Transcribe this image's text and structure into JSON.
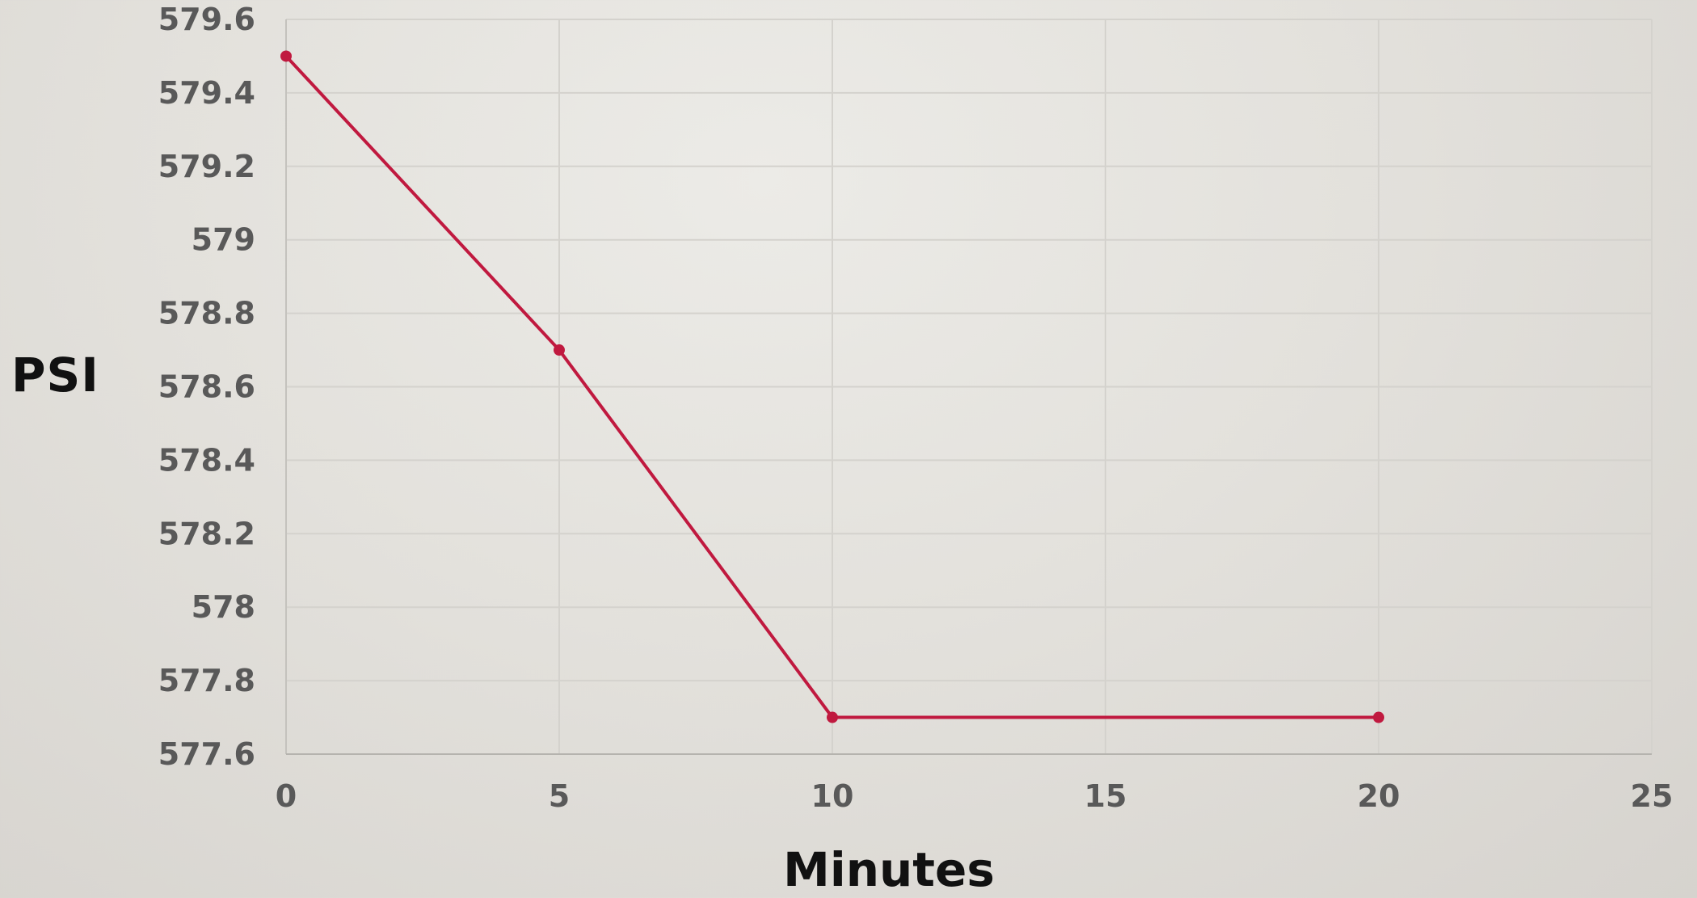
{
  "chart_data": {
    "type": "line",
    "title": "",
    "xlabel": "Minutes",
    "ylabel": "PSI",
    "xlim": [
      0,
      25
    ],
    "ylim": [
      577.6,
      579.6
    ],
    "x_ticks": [
      "0",
      "5",
      "10",
      "15",
      "20",
      "25"
    ],
    "y_ticks": [
      "577.6",
      "577.8",
      "578",
      "578.2",
      "578.4",
      "578.6",
      "578.8",
      "579",
      "579.2",
      "579.4",
      "579.6"
    ],
    "grid": true,
    "legend": "none",
    "series": [
      {
        "color": "#c0193f",
        "points": [
          {
            "x": 0,
            "y": 579.5
          },
          {
            "x": 5,
            "y": 578.7
          },
          {
            "x": 10,
            "y": 577.7
          },
          {
            "x": 20,
            "y": 577.7
          }
        ]
      }
    ]
  }
}
